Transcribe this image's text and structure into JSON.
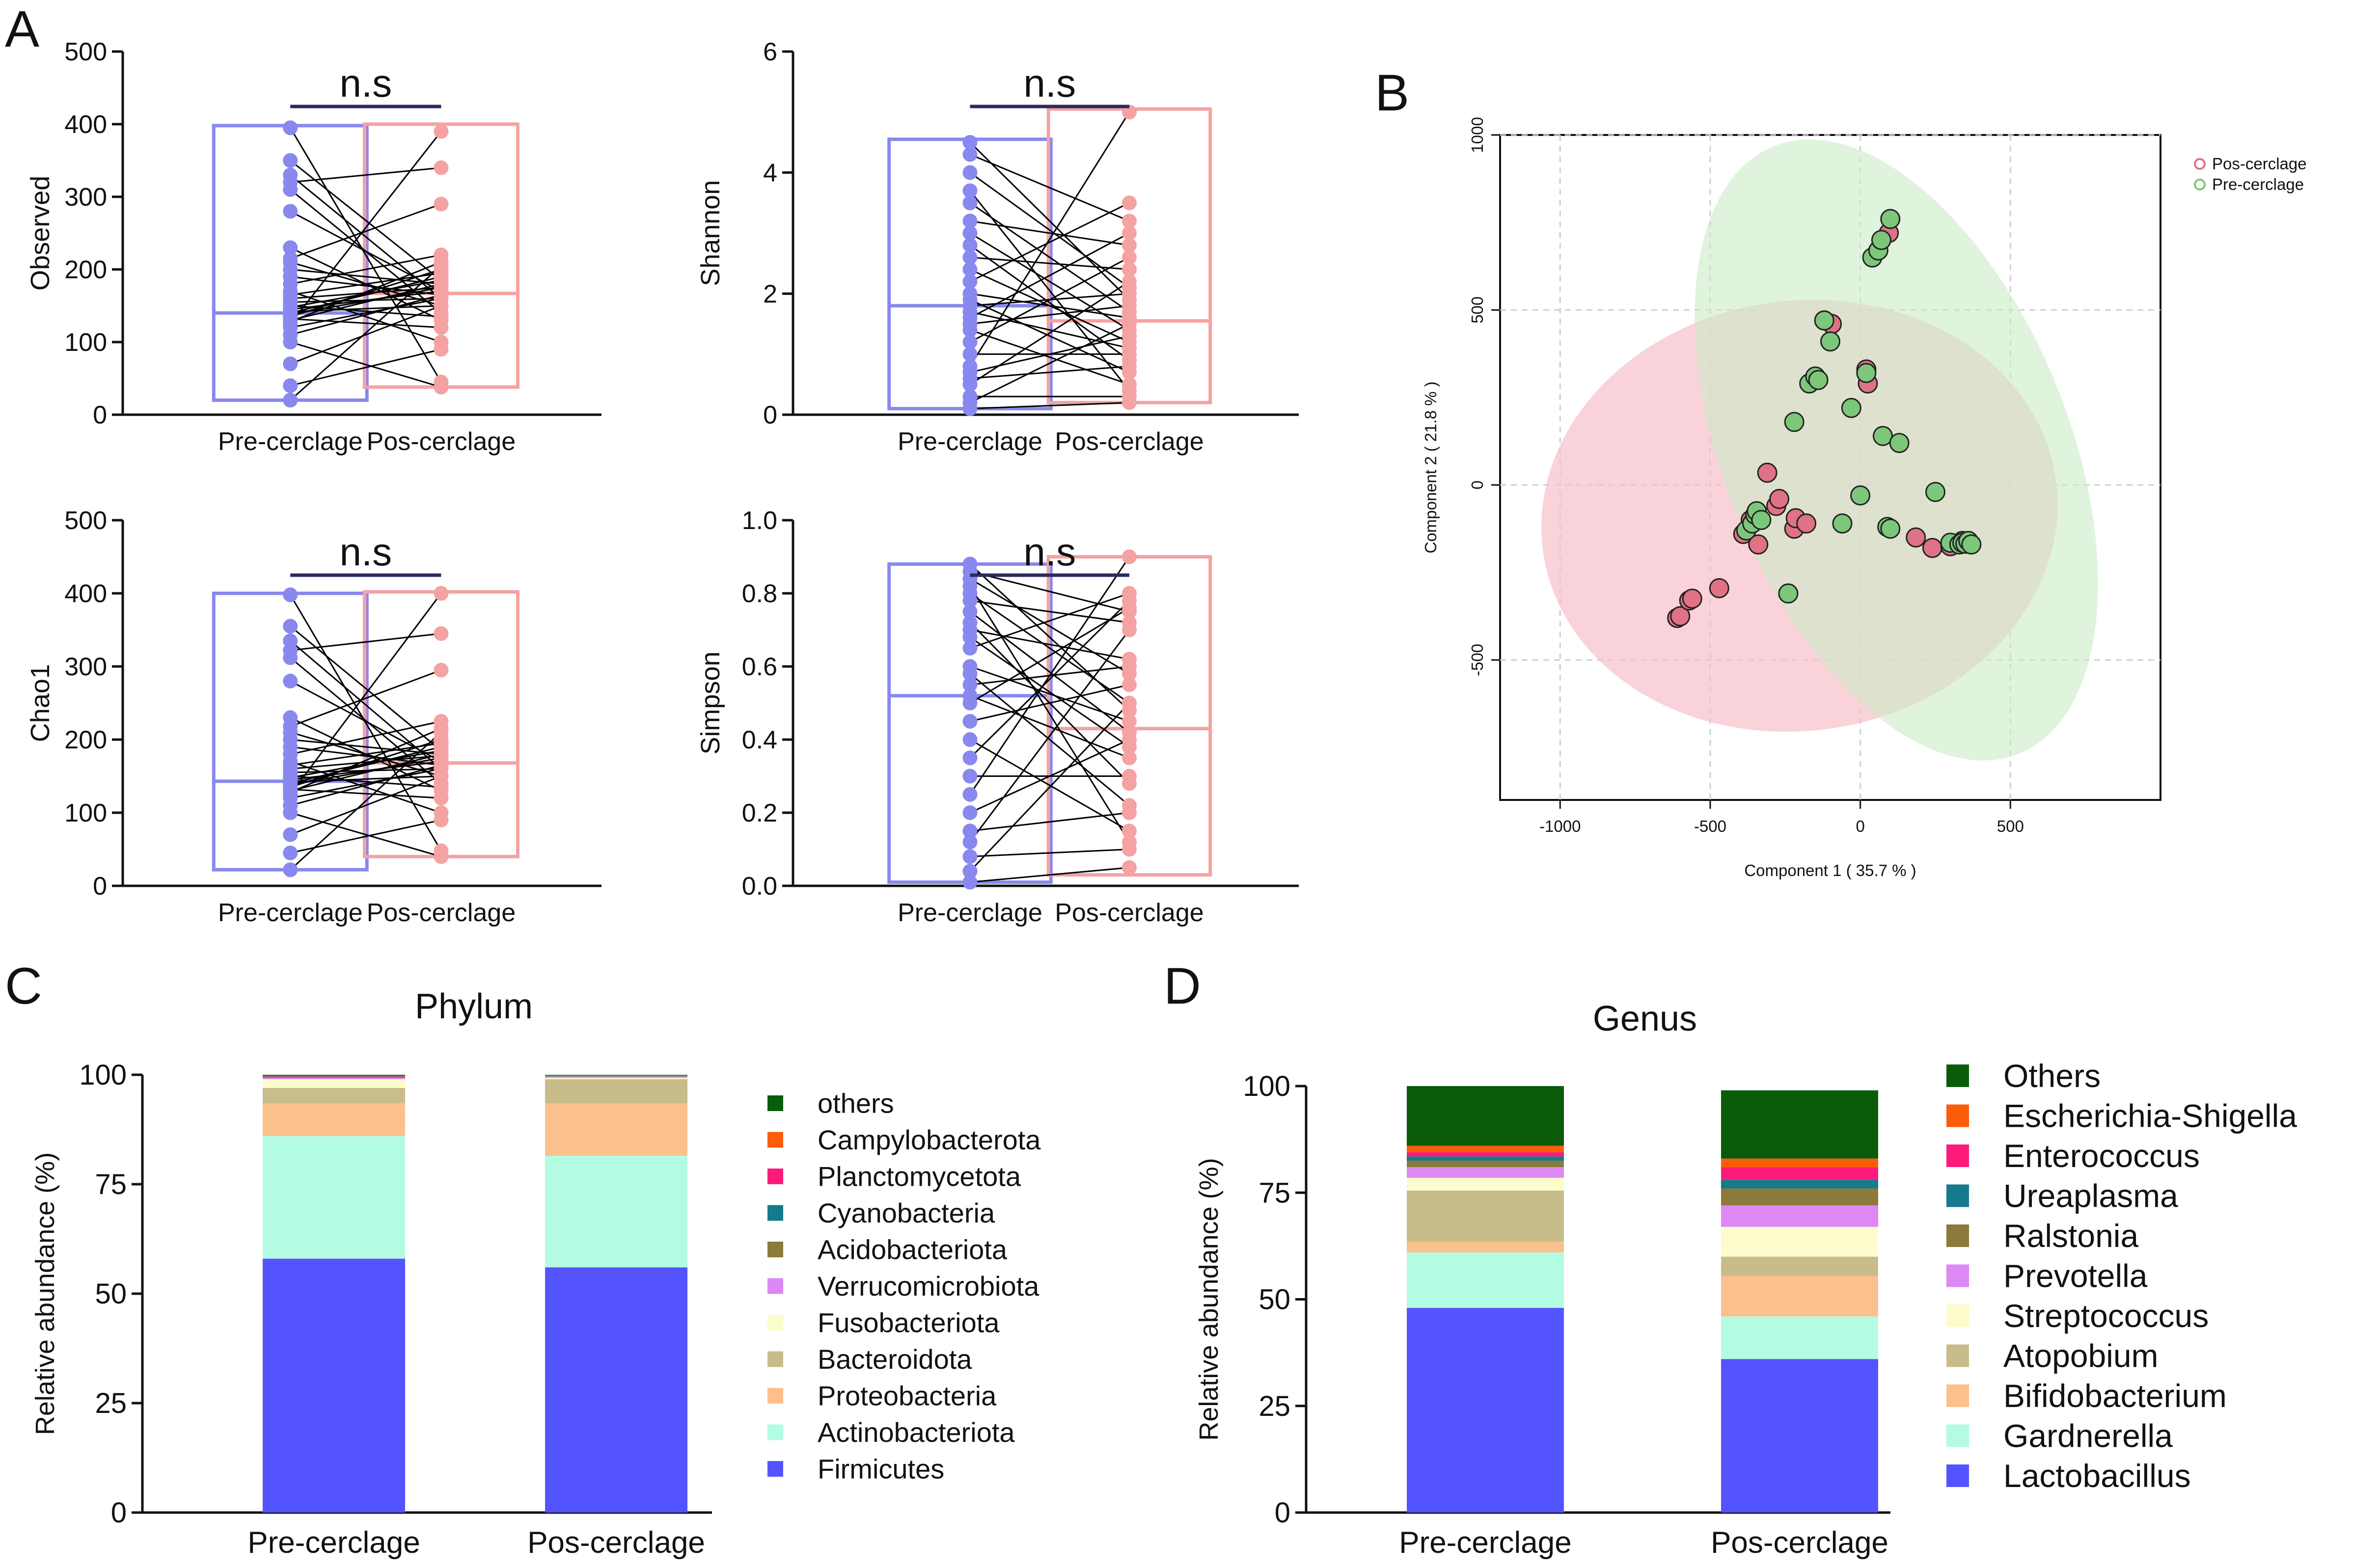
{
  "panel_labels": {
    "a": "A",
    "b": "B",
    "c": "C",
    "d": "D"
  },
  "colors": {
    "pre": "#8888ee",
    "pos": "#f4a2a2",
    "pair_line": "#000000",
    "ns_bar": "#2a2a5e",
    "pca_pos_fill": "#f6bfcb",
    "pca_pre_fill": "#c9ebc6",
    "pca_pos_point": "#e07286",
    "pca_pre_point": "#7cc77a"
  },
  "chart_data": [
    {
      "id": "observed",
      "type": "paired-box",
      "ylabel": "Observed",
      "ylim": [
        0,
        500
      ],
      "yticks": [
        "0",
        "100",
        "200",
        "300",
        "400",
        "500"
      ],
      "categories": [
        "Pre-cerclage",
        "Pos-cerclage"
      ],
      "significance": "n.s",
      "box": {
        "pre": {
          "min": 20,
          "median": 140,
          "max": 398
        },
        "pos": {
          "min": 38,
          "median": 167,
          "max": 400
        }
      },
      "pairs": [
        [
          20,
          205
        ],
        [
          40,
          90
        ],
        [
          70,
          150
        ],
        [
          100,
          38
        ],
        [
          110,
          165
        ],
        [
          120,
          160
        ],
        [
          125,
          390
        ],
        [
          128,
          210
        ],
        [
          130,
          180
        ],
        [
          132,
          120
        ],
        [
          135,
          200
        ],
        [
          138,
          175
        ],
        [
          140,
          190
        ],
        [
          142,
          150
        ],
        [
          145,
          170
        ],
        [
          148,
          185
        ],
        [
          150,
          135
        ],
        [
          155,
          160
        ],
        [
          160,
          175
        ],
        [
          165,
          195
        ],
        [
          170,
          100
        ],
        [
          180,
          220
        ],
        [
          190,
          165
        ],
        [
          200,
          180
        ],
        [
          210,
          150
        ],
        [
          215,
          290
        ],
        [
          230,
          130
        ],
        [
          280,
          170
        ],
        [
          310,
          140
        ],
        [
          320,
          340
        ],
        [
          330,
          160
        ],
        [
          350,
          185
        ],
        [
          395,
          45
        ]
      ]
    },
    {
      "id": "shannon",
      "type": "paired-box",
      "ylabel": "Shannon",
      "ylim": [
        0,
        6
      ],
      "yticks": [
        "0",
        "2",
        "4",
        "6"
      ],
      "categories": [
        "Pre-cerclage",
        "Pos-cerclage"
      ],
      "significance": "n.s",
      "box": {
        "pre": {
          "min": 0.1,
          "median": 1.8,
          "max": 4.55
        },
        "pos": {
          "min": 0.2,
          "median": 1.55,
          "max": 5.05
        }
      },
      "pairs": [
        [
          0.1,
          0.2
        ],
        [
          0.2,
          1.5
        ],
        [
          0.3,
          0.3
        ],
        [
          0.5,
          2.2
        ],
        [
          0.6,
          0.8
        ],
        [
          0.7,
          1.3
        ],
        [
          0.8,
          5.0
        ],
        [
          1.0,
          1.0
        ],
        [
          1.2,
          2.6
        ],
        [
          1.4,
          0.5
        ],
        [
          1.5,
          1.8
        ],
        [
          1.6,
          3.0
        ],
        [
          1.7,
          1.1
        ],
        [
          1.8,
          2.0
        ],
        [
          1.9,
          0.7
        ],
        [
          2.0,
          1.6
        ],
        [
          2.2,
          3.5
        ],
        [
          2.4,
          1.2
        ],
        [
          2.6,
          2.4
        ],
        [
          2.8,
          0.9
        ],
        [
          3.0,
          1.4
        ],
        [
          3.2,
          2.8
        ],
        [
          3.5,
          1.7
        ],
        [
          3.7,
          0.4
        ],
        [
          4.0,
          2.1
        ],
        [
          4.3,
          3.2
        ],
        [
          4.5,
          1.9
        ]
      ]
    },
    {
      "id": "chao1",
      "type": "paired-box",
      "ylabel": "Chao1",
      "ylim": [
        0,
        500
      ],
      "yticks": [
        "0",
        "100",
        "200",
        "300",
        "400",
        "500"
      ],
      "categories": [
        "Pre-cerclage",
        "Pos-cerclage"
      ],
      "significance": "n.s",
      "box": {
        "pre": {
          "min": 22,
          "median": 143,
          "max": 400
        },
        "pos": {
          "min": 40,
          "median": 168,
          "max": 402
        }
      },
      "pairs": [
        [
          22,
          210
        ],
        [
          45,
          90
        ],
        [
          70,
          150
        ],
        [
          100,
          40
        ],
        [
          110,
          165
        ],
        [
          120,
          160
        ],
        [
          125,
          400
        ],
        [
          128,
          215
        ],
        [
          130,
          180
        ],
        [
          132,
          120
        ],
        [
          135,
          200
        ],
        [
          138,
          175
        ],
        [
          140,
          190
        ],
        [
          142,
          150
        ],
        [
          145,
          170
        ],
        [
          148,
          185
        ],
        [
          150,
          135
        ],
        [
          155,
          160
        ],
        [
          160,
          178
        ],
        [
          165,
          195
        ],
        [
          170,
          100
        ],
        [
          180,
          225
        ],
        [
          190,
          165
        ],
        [
          200,
          180
        ],
        [
          210,
          150
        ],
        [
          218,
          295
        ],
        [
          230,
          130
        ],
        [
          280,
          170
        ],
        [
          312,
          140
        ],
        [
          322,
          345
        ],
        [
          335,
          160
        ],
        [
          355,
          185
        ],
        [
          398,
          48
        ]
      ]
    },
    {
      "id": "simpson",
      "type": "paired-box",
      "ylabel": "Simpson",
      "ylim": [
        0,
        1
      ],
      "yticks": [
        "0.0",
        "0.2",
        "0.4",
        "0.6",
        "0.8",
        "1.0"
      ],
      "categories": [
        "Pre-cerclage",
        "Pos-cerclage"
      ],
      "significance": "n.s",
      "box": {
        "pre": {
          "min": 0.01,
          "median": 0.52,
          "max": 0.88
        },
        "pos": {
          "min": 0.03,
          "median": 0.43,
          "max": 0.9
        }
      },
      "pairs": [
        [
          0.01,
          0.05
        ],
        [
          0.04,
          0.5
        ],
        [
          0.08,
          0.1
        ],
        [
          0.12,
          0.7
        ],
        [
          0.15,
          0.2
        ],
        [
          0.2,
          0.4
        ],
        [
          0.25,
          0.9
        ],
        [
          0.3,
          0.3
        ],
        [
          0.35,
          0.78
        ],
        [
          0.4,
          0.15
        ],
        [
          0.45,
          0.55
        ],
        [
          0.5,
          0.76
        ],
        [
          0.52,
          0.35
        ],
        [
          0.55,
          0.6
        ],
        [
          0.58,
          0.22
        ],
        [
          0.6,
          0.45
        ],
        [
          0.65,
          0.8
        ],
        [
          0.68,
          0.38
        ],
        [
          0.7,
          0.62
        ],
        [
          0.72,
          0.28
        ],
        [
          0.75,
          0.42
        ],
        [
          0.78,
          0.72
        ],
        [
          0.8,
          0.5
        ],
        [
          0.82,
          0.12
        ],
        [
          0.84,
          0.58
        ],
        [
          0.86,
          0.75
        ],
        [
          0.88,
          0.48
        ]
      ]
    },
    {
      "id": "pca",
      "type": "scatter",
      "xlabel": "Component 1 ( 35.7 % )",
      "ylabel": "Component 2 ( 21.8 % )",
      "xlim": [
        -1200,
        1000
      ],
      "ylim": [
        -900,
        1000
      ],
      "xticks": [
        "-1000",
        "-500",
        "0",
        "500"
      ],
      "yticks": [
        "-500",
        "0",
        "500",
        "1000"
      ],
      "legend": [
        "Pos-cerclage",
        "Pre-cerclage"
      ],
      "series": [
        {
          "name": "Pos-cerclage",
          "points": [
            [
              -610,
              -380
            ],
            [
              -600,
              -375
            ],
            [
              -570,
              -330
            ],
            [
              -560,
              -325
            ],
            [
              -470,
              -295
            ],
            [
              -390,
              -140
            ],
            [
              -365,
              -100
            ],
            [
              -350,
              -90
            ],
            [
              -340,
              -170
            ],
            [
              -310,
              35
            ],
            [
              -280,
              -60
            ],
            [
              -270,
              -40
            ],
            [
              -220,
              -125
            ],
            [
              -215,
              -95
            ],
            [
              -180,
              -110
            ],
            [
              -120,
              470
            ],
            [
              -95,
              460
            ],
            [
              20,
              330
            ],
            [
              25,
              290
            ],
            [
              95,
              720
            ],
            [
              185,
              -150
            ],
            [
              240,
              -180
            ],
            [
              300,
              -175
            ],
            [
              340,
              -160
            ],
            [
              360,
              -165
            ]
          ]
        },
        {
          "name": "Pre-cerclage",
          "points": [
            [
              -380,
              -130
            ],
            [
              -360,
              -110
            ],
            [
              -350,
              -85
            ],
            [
              -345,
              -75
            ],
            [
              -330,
              -100
            ],
            [
              -240,
              -310
            ],
            [
              -220,
              180
            ],
            [
              -170,
              290
            ],
            [
              -150,
              310
            ],
            [
              -140,
              300
            ],
            [
              -120,
              470
            ],
            [
              -100,
              410
            ],
            [
              -60,
              -110
            ],
            [
              -30,
              220
            ],
            [
              0,
              -30
            ],
            [
              20,
              320
            ],
            [
              40,
              650
            ],
            [
              60,
              670
            ],
            [
              70,
              700
            ],
            [
              75,
              140
            ],
            [
              90,
              -120
            ],
            [
              100,
              -125
            ],
            [
              100,
              760
            ],
            [
              130,
              120
            ],
            [
              250,
              -20
            ],
            [
              300,
              -165
            ],
            [
              330,
              -170
            ],
            [
              340,
              -165
            ],
            [
              350,
              -168
            ],
            [
              360,
              -160
            ],
            [
              370,
              -170
            ]
          ]
        }
      ]
    },
    {
      "id": "phylum",
      "type": "stacked-bar",
      "title": "Phylum",
      "ylabel": "Relative abundance (%)",
      "ylim": [
        0,
        100
      ],
      "yticks": [
        "0",
        "25",
        "50",
        "75",
        "100"
      ],
      "categories": [
        "Pre-cerclage",
        "Pos-cerclage"
      ],
      "series": [
        {
          "name": "Firmicutes",
          "color": "#5454ff",
          "values": [
            58,
            56
          ]
        },
        {
          "name": "Actinobacteriota",
          "color": "#b3fce3",
          "values": [
            28,
            25.5
          ]
        },
        {
          "name": "Proteobacteria",
          "color": "#fcc08c",
          "values": [
            7.5,
            12
          ]
        },
        {
          "name": "Bacteroidota",
          "color": "#c8bc8a",
          "values": [
            3.5,
            5.5
          ]
        },
        {
          "name": "Fusobacteriota",
          "color": "#fcfccc",
          "values": [
            2,
            0.3
          ]
        },
        {
          "name": "Verrucomicrobiota",
          "color": "#dd88f4",
          "values": [
            0.3,
            0.3
          ]
        },
        {
          "name": "Acidobacteriota",
          "color": "#8b7a3a",
          "values": [
            0.2,
            0.1
          ]
        },
        {
          "name": "Cyanobacteria",
          "color": "#147a8c",
          "values": [
            0.1,
            0.1
          ]
        },
        {
          "name": "Planctomycetota",
          "color": "#fc1a7a",
          "values": [
            0.1,
            0.05
          ]
        },
        {
          "name": "Campylobacterota",
          "color": "#fc5c08",
          "values": [
            0.1,
            0.05
          ]
        },
        {
          "name": "others",
          "color": "#0a5c0a",
          "values": [
            0.2,
            0.1
          ]
        }
      ]
    },
    {
      "id": "genus",
      "type": "stacked-bar",
      "title": "Genus",
      "ylabel": "Relative abundance (%)",
      "ylim": [
        0,
        100
      ],
      "yticks": [
        "0",
        "25",
        "50",
        "75",
        "100"
      ],
      "categories": [
        "Pre-cerclage",
        "Pos-cerclage"
      ],
      "series": [
        {
          "name": "Lactobacillus",
          "color": "#5454ff",
          "values": [
            48,
            36
          ]
        },
        {
          "name": "Gardnerella",
          "color": "#b3fce3",
          "values": [
            13,
            10
          ]
        },
        {
          "name": "Bifidobacterium",
          "color": "#fcc08c",
          "values": [
            2.5,
            9.5
          ]
        },
        {
          "name": "Atopobium",
          "color": "#c8bc8a",
          "values": [
            12,
            4.5
          ]
        },
        {
          "name": "Streptococcus",
          "color": "#fcfccc",
          "values": [
            3,
            7
          ]
        },
        {
          "name": "Prevotella",
          "color": "#dd88f4",
          "values": [
            2.5,
            5
          ]
        },
        {
          "name": "Ralstonia",
          "color": "#8b7a3a",
          "values": [
            1.5,
            4
          ]
        },
        {
          "name": "Ureaplasma",
          "color": "#147a8c",
          "values": [
            1,
            2
          ]
        },
        {
          "name": "Enterococcus",
          "color": "#fc1a7a",
          "values": [
            1,
            3
          ]
        },
        {
          "name": "Escherichia-Shigella",
          "color": "#fc5c08",
          "values": [
            1.5,
            2
          ]
        },
        {
          "name": "Others",
          "color": "#0a5c0a",
          "values": [
            14,
            16
          ]
        }
      ]
    }
  ]
}
